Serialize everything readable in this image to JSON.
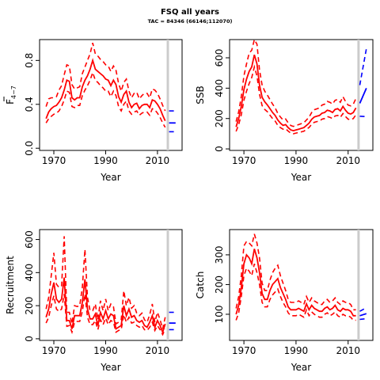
{
  "header": {
    "title": "FSQ all years",
    "subtitle": "TAC = 84346 (66146;112070)"
  },
  "chart_data": [
    {
      "id": "fbar",
      "type": "line",
      "ylabel": "F",
      "ylabel_sub": "4−7",
      "xlabel": "Year",
      "xlim": [
        1964.5,
        2019.5
      ],
      "ylim": [
        -0.02,
        0.99
      ],
      "xticks": [
        1970,
        1990,
        2010
      ],
      "yticks": [
        0.0,
        0.4,
        0.8
      ],
      "ytick_labels": [
        "0.0",
        "0.4",
        "0.8"
      ],
      "vline_year": 2014,
      "historic": {
        "x": [
          1967,
          1968,
          1969,
          1970,
          1971,
          1972,
          1973,
          1974,
          1975,
          1976,
          1977,
          1978,
          1979,
          1980,
          1981,
          1982,
          1983,
          1984,
          1985,
          1986,
          1987,
          1988,
          1989,
          1990,
          1991,
          1992,
          1993,
          1994,
          1995,
          1996,
          1997,
          1998,
          1999,
          2000,
          2001,
          2002,
          2003,
          2004,
          2005,
          2006,
          2007,
          2008,
          2009,
          2010,
          2011,
          2012,
          2013
        ],
        "estimate": [
          0.27,
          0.33,
          0.36,
          0.38,
          0.39,
          0.42,
          0.46,
          0.53,
          0.62,
          0.61,
          0.46,
          0.44,
          0.46,
          0.46,
          0.56,
          0.62,
          0.66,
          0.72,
          0.8,
          0.72,
          0.7,
          0.68,
          0.66,
          0.63,
          0.62,
          0.57,
          0.62,
          0.58,
          0.47,
          0.42,
          0.49,
          0.52,
          0.42,
          0.37,
          0.4,
          0.41,
          0.36,
          0.39,
          0.4,
          0.4,
          0.37,
          0.44,
          0.43,
          0.4,
          0.36,
          0.3,
          0.25
        ],
        "lower": [
          0.23,
          0.27,
          0.29,
          0.31,
          0.32,
          0.34,
          0.38,
          0.44,
          0.52,
          0.51,
          0.38,
          0.37,
          0.39,
          0.39,
          0.48,
          0.53,
          0.57,
          0.62,
          0.69,
          0.62,
          0.6,
          0.57,
          0.55,
          0.52,
          0.52,
          0.47,
          0.52,
          0.48,
          0.38,
          0.34,
          0.4,
          0.43,
          0.34,
          0.31,
          0.33,
          0.34,
          0.3,
          0.32,
          0.33,
          0.33,
          0.3,
          0.36,
          0.35,
          0.32,
          0.28,
          0.23,
          0.19
        ],
        "upper": [
          0.38,
          0.45,
          0.46,
          0.46,
          0.47,
          0.53,
          0.57,
          0.67,
          0.76,
          0.75,
          0.58,
          0.54,
          0.55,
          0.56,
          0.68,
          0.74,
          0.8,
          0.86,
          0.96,
          0.86,
          0.84,
          0.81,
          0.79,
          0.76,
          0.75,
          0.7,
          0.75,
          0.71,
          0.59,
          0.52,
          0.6,
          0.63,
          0.52,
          0.46,
          0.5,
          0.51,
          0.45,
          0.48,
          0.5,
          0.5,
          0.46,
          0.54,
          0.53,
          0.5,
          0.45,
          0.39,
          0.34
        ]
      },
      "forecast": {
        "x": [
          2014.5,
          2017
        ],
        "estimate": [
          0.23,
          0.23
        ],
        "lower": [
          0.15,
          0.15
        ],
        "upper": [
          0.34,
          0.34
        ]
      }
    },
    {
      "id": "ssb",
      "type": "line",
      "ylabel": "SSB",
      "xlabel": "Year",
      "xlim": [
        1964.5,
        2019.5
      ],
      "ylim": [
        -10,
        720
      ],
      "xticks": [
        1970,
        1990,
        2010
      ],
      "yticks": [
        0,
        200,
        400,
        600
      ],
      "ytick_labels": [
        "0",
        "200",
        "400",
        "600"
      ],
      "vline_year": 2014,
      "historic": {
        "x": [
          1967,
          1968,
          1969,
          1970,
          1971,
          1972,
          1973,
          1974,
          1975,
          1976,
          1977,
          1978,
          1979,
          1980,
          1981,
          1982,
          1983,
          1984,
          1985,
          1986,
          1987,
          1988,
          1989,
          1990,
          1991,
          1992,
          1993,
          1994,
          1995,
          1996,
          1997,
          1998,
          1999,
          2000,
          2001,
          2002,
          2003,
          2004,
          2005,
          2006,
          2007,
          2008,
          2009,
          2010,
          2011,
          2012,
          2013
        ],
        "estimate": [
          145,
          200,
          280,
          390,
          460,
          510,
          540,
          620,
          560,
          420,
          340,
          310,
          290,
          265,
          240,
          220,
          190,
          170,
          155,
          160,
          140,
          125,
          120,
          125,
          130,
          135,
          140,
          155,
          170,
          195,
          210,
          215,
          220,
          235,
          240,
          255,
          250,
          240,
          260,
          265,
          250,
          280,
          255,
          235,
          230,
          240,
          270
        ],
        "lower": [
          115,
          160,
          225,
          320,
          380,
          430,
          470,
          540,
          480,
          360,
          285,
          260,
          245,
          222,
          200,
          183,
          155,
          140,
          130,
          133,
          117,
          104,
          100,
          104,
          108,
          112,
          116,
          129,
          141,
          162,
          175,
          180,
          183,
          196,
          200,
          213,
          208,
          200,
          217,
          221,
          208,
          233,
          213,
          196,
          192,
          200,
          225
        ],
        "upper": [
          180,
          245,
          345,
          480,
          560,
          630,
          650,
          720,
          690,
          520,
          420,
          380,
          355,
          325,
          295,
          270,
          234,
          210,
          191,
          197,
          172,
          154,
          148,
          154,
          160,
          166,
          172,
          190,
          209,
          240,
          258,
          264,
          270,
          289,
          295,
          313,
          307,
          295,
          320,
          326,
          307,
          344,
          313,
          289,
          283,
          295,
          332
        ]
      },
      "forecast": {
        "x": [
          2014.5,
          2017
        ],
        "estimate": [
          300,
          400
        ],
        "lower": [
          215,
          212
        ],
        "upper": [
          420,
          660
        ]
      }
    },
    {
      "id": "recruitment",
      "type": "line",
      "ylabel": "Recruitment",
      "xlabel": "Year",
      "xlim": [
        1964.5,
        2019.5
      ],
      "ylim": [
        -10,
        660
      ],
      "xticks": [
        1970,
        1990,
        2010
      ],
      "yticks": [
        0,
        200,
        400,
        600
      ],
      "ytick_labels": [
        "0",
        "200",
        "400",
        "600"
      ],
      "vline_year": 2014,
      "historic": {
        "x": [
          1967,
          1968,
          1969,
          1970,
          1971,
          1972,
          1973,
          1974,
          1975,
          1976,
          1977,
          1978,
          1979,
          1980,
          1981,
          1982,
          1983,
          1984,
          1985,
          1986,
          1987,
          1988,
          1989,
          1990,
          1991,
          1992,
          1993,
          1994,
          1995,
          1996,
          1997,
          1998,
          1999,
          2000,
          2001,
          2002,
          2003,
          2004,
          2005,
          2006,
          2007,
          2008,
          2009,
          2010,
          2011,
          2012,
          2013
        ],
        "estimate": [
          130,
          180,
          270,
          340,
          240,
          220,
          240,
          370,
          110,
          110,
          60,
          140,
          140,
          140,
          220,
          360,
          180,
          120,
          120,
          150,
          80,
          160,
          120,
          170,
          120,
          150,
          140,
          60,
          70,
          80,
          200,
          140,
          180,
          130,
          140,
          110,
          100,
          110,
          80,
          70,
          100,
          140,
          70,
          110,
          80,
          40,
          90
        ],
        "lower": [
          95,
          130,
          200,
          260,
          180,
          165,
          180,
          270,
          75,
          80,
          40,
          100,
          105,
          105,
          165,
          270,
          130,
          85,
          85,
          110,
          55,
          115,
          85,
          125,
          85,
          110,
          100,
          40,
          50,
          55,
          145,
          100,
          130,
          95,
          100,
          80,
          70,
          80,
          55,
          50,
          70,
          100,
          50,
          80,
          55,
          25,
          60
        ],
        "upper": [
          180,
          250,
          380,
          520,
          330,
          310,
          320,
          620,
          160,
          160,
          90,
          200,
          195,
          200,
          310,
          540,
          250,
          170,
          170,
          210,
          115,
          230,
          170,
          240,
          170,
          210,
          195,
          90,
          100,
          115,
          290,
          200,
          250,
          185,
          200,
          155,
          140,
          155,
          115,
          100,
          145,
          210,
          100,
          160,
          115,
          60,
          130
        ]
      },
      "forecast": {
        "x": [
          2014.5,
          2017
        ],
        "estimate": [
          95,
          95
        ],
        "lower": [
          55,
          55
        ],
        "upper": [
          160,
          160
        ]
      }
    },
    {
      "id": "catch",
      "type": "line",
      "ylabel": "Catch",
      "xlabel": "Year",
      "xlim": [
        1964.5,
        2019.5
      ],
      "ylim": [
        12,
        385
      ],
      "xticks": [
        1970,
        1990,
        2010
      ],
      "yticks": [
        100,
        200,
        300
      ],
      "ytick_labels": [
        "100",
        "200",
        "300"
      ],
      "vline_year": 2014,
      "historic": {
        "x": [
          1967,
          1968,
          1969,
          1970,
          1971,
          1972,
          1973,
          1974,
          1975,
          1976,
          1977,
          1978,
          1979,
          1980,
          1981,
          1982,
          1983,
          1984,
          1985,
          1986,
          1987,
          1988,
          1989,
          1990,
          1991,
          1992,
          1993,
          1994,
          1995,
          1996,
          1997,
          1998,
          1999,
          2000,
          2001,
          2002,
          2003,
          2004,
          2005,
          2006,
          2007,
          2008,
          2009,
          2010,
          2011,
          2012,
          2013
        ],
        "estimate": [
          100,
          130,
          190,
          270,
          300,
          290,
          270,
          320,
          290,
          240,
          170,
          150,
          150,
          180,
          200,
          210,
          220,
          190,
          170,
          150,
          125,
          115,
          115,
          115,
          120,
          115,
          110,
          135,
          115,
          130,
          120,
          115,
          110,
          110,
          120,
          125,
          115,
          120,
          130,
          115,
          110,
          120,
          115,
          115,
          110,
          95,
          95
        ],
        "lower": [
          80,
          105,
          160,
          230,
          255,
          245,
          230,
          270,
          240,
          200,
          140,
          125,
          125,
          150,
          165,
          175,
          185,
          160,
          140,
          125,
          105,
          95,
          95,
          95,
          100,
          95,
          90,
          115,
          95,
          108,
          100,
          95,
          90,
          90,
          100,
          105,
          95,
          100,
          108,
          95,
          90,
          100,
          95,
          95,
          90,
          80,
          80
        ],
        "upper": [
          120,
          160,
          230,
          330,
          345,
          340,
          330,
          370,
          340,
          290,
          205,
          180,
          180,
          215,
          240,
          255,
          265,
          230,
          205,
          180,
          150,
          140,
          140,
          140,
          145,
          140,
          133,
          160,
          140,
          155,
          145,
          140,
          133,
          133,
          145,
          150,
          140,
          145,
          155,
          140,
          133,
          145,
          140,
          140,
          133,
          115,
          115
        ]
      },
      "forecast": {
        "x": [
          2014.5,
          2017
        ],
        "estimate": [
          95,
          102
        ],
        "lower": [
          83,
          85
        ],
        "upper": [
          110,
          122
        ]
      }
    }
  ]
}
